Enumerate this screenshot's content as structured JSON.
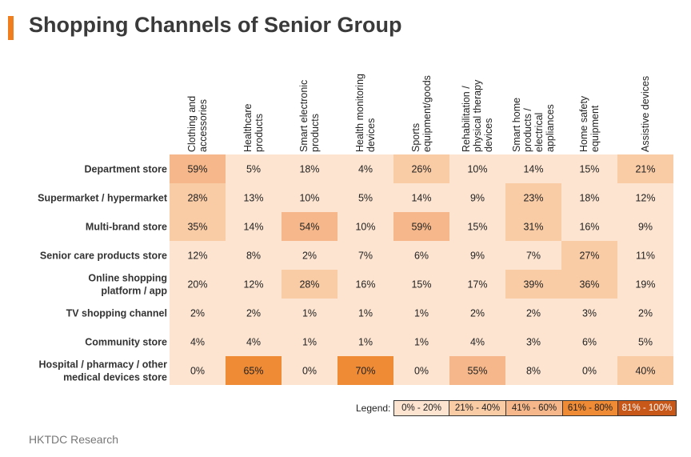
{
  "title": "Shopping Channels of Senior Group",
  "source": "HKTDC Research",
  "legend": {
    "label": "Legend:",
    "ranges": [
      {
        "label": "0% - 20%",
        "color": "#fde4d0"
      },
      {
        "label": "21% - 40%",
        "color": "#f9cca6"
      },
      {
        "label": "41% - 60%",
        "color": "#f6b88a"
      },
      {
        "label": "61% - 80%",
        "color": "#ef8a35"
      },
      {
        "label": "81% - 100%",
        "color": "#c8571a"
      }
    ]
  },
  "chart_data": {
    "type": "heatmap",
    "title": "Shopping Channels of Senior Group",
    "columns": [
      [
        "Clothing and",
        "accessories"
      ],
      [
        "Healthcare",
        "products"
      ],
      [
        "Smart electronic",
        "products"
      ],
      [
        "Health monitoring",
        "devices"
      ],
      [
        "Sports",
        "equipment/goods"
      ],
      [
        "Rehabilitation /",
        "physical therapy",
        "devices"
      ],
      [
        "Smart home",
        "products /",
        "electrical",
        "appliances"
      ],
      [
        "Home safety",
        "equipment"
      ],
      [
        "Assistive devices"
      ]
    ],
    "rows": [
      [
        "Department store"
      ],
      [
        "Supermarket / hypermarket"
      ],
      [
        "Multi-brand store"
      ],
      [
        "Senior care products store"
      ],
      [
        "Online shopping",
        "platform / app"
      ],
      [
        "TV shopping channel"
      ],
      [
        "Community store"
      ],
      [
        "Hospital / pharmacy / other",
        "medical devices store"
      ]
    ],
    "values": [
      [
        59,
        5,
        18,
        4,
        26,
        10,
        14,
        15,
        21
      ],
      [
        28,
        13,
        10,
        5,
        14,
        9,
        23,
        18,
        12
      ],
      [
        35,
        14,
        54,
        10,
        59,
        15,
        31,
        16,
        9
      ],
      [
        12,
        8,
        2,
        7,
        6,
        9,
        7,
        27,
        11
      ],
      [
        20,
        12,
        28,
        16,
        15,
        17,
        39,
        36,
        19
      ],
      [
        2,
        2,
        1,
        1,
        1,
        2,
        2,
        3,
        2
      ],
      [
        4,
        4,
        1,
        1,
        1,
        4,
        3,
        6,
        5
      ],
      [
        0,
        65,
        0,
        70,
        0,
        55,
        8,
        0,
        40
      ]
    ],
    "unit": "%"
  }
}
